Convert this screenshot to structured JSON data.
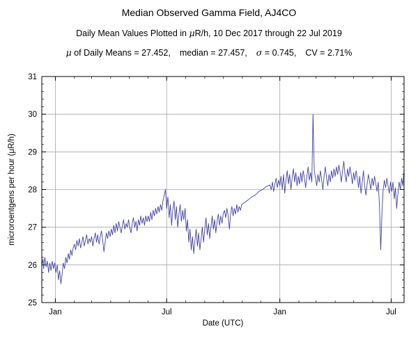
{
  "header": {
    "title": "Median Observed Gamma Field, AJ4CO",
    "subtitle_pre": "Daily Mean Values Plotted in ",
    "subtitle_mu": "μ",
    "subtitle_post": "R/h, 10 Dec 2017 through 22 Jul 2019",
    "stats": {
      "mu": "μ",
      "mu_text": " of Daily Means = 27.452,",
      "median_text": "median = 27.457,",
      "sigma": "σ",
      "sigma_text": " = 0.745,",
      "cv_text": "CV = 2.71%"
    }
  },
  "chart_data": {
    "type": "line",
    "title": "Median Observed Gamma Field, AJ4CO",
    "xlabel": "Date (UTC)",
    "ylabel": "microroentgens per hour (μR/h)",
    "x_start_date": "2017-12-10",
    "x_end_date": "2019-07-22",
    "x_unit": "days since 2017-12-10",
    "xlim_days": [
      0,
      589
    ],
    "ylim": [
      25,
      31
    ],
    "y_major_ticks": [
      25,
      26,
      27,
      28,
      29,
      30,
      31
    ],
    "x_major_ticks": [
      {
        "day": 22,
        "label": "Jan"
      },
      {
        "day": 203,
        "label": "Jul"
      },
      {
        "day": 387,
        "label": "Jan"
      },
      {
        "day": 568,
        "label": "Jul"
      }
    ],
    "x_minor_tick_days": [
      22,
      53,
      81,
      112,
      142,
      173,
      203,
      234,
      265,
      295,
      326,
      356,
      387,
      418,
      446,
      477,
      507,
      538,
      568
    ],
    "grid": true,
    "grid_color": "#a6a6a6",
    "line_color": "#4242a0",
    "stats": {
      "mean": 27.452,
      "median": 27.457,
      "sigma": 0.745,
      "cv_percent": 2.71
    },
    "points": [
      [
        0,
        26.0
      ],
      [
        2,
        26.15
      ],
      [
        3,
        25.9
      ],
      [
        5,
        26.2
      ],
      [
        7,
        25.95
      ],
      [
        9,
        26.1
      ],
      [
        11,
        25.8
      ],
      [
        13,
        26.05
      ],
      [
        15,
        25.85
      ],
      [
        17,
        26.1
      ],
      [
        19,
        25.9
      ],
      [
        21,
        26.05
      ],
      [
        23,
        25.8
      ],
      [
        25,
        26.0
      ],
      [
        27,
        25.6
      ],
      [
        29,
        25.85
      ],
      [
        31,
        25.5
      ],
      [
        33,
        25.75
      ],
      [
        35,
        26.05
      ],
      [
        37,
        25.9
      ],
      [
        39,
        26.2
      ],
      [
        41,
        26.05
      ],
      [
        43,
        26.3
      ],
      [
        45,
        26.15
      ],
      [
        47,
        26.4
      ],
      [
        49,
        26.25
      ],
      [
        51,
        26.45
      ],
      [
        53,
        26.55
      ],
      [
        55,
        26.4
      ],
      [
        57,
        26.65
      ],
      [
        59,
        26.5
      ],
      [
        61,
        26.7
      ],
      [
        63,
        26.45
      ],
      [
        65,
        26.6
      ],
      [
        67,
        26.75
      ],
      [
        69,
        26.5
      ],
      [
        71,
        26.65
      ],
      [
        73,
        26.8
      ],
      [
        75,
        26.55
      ],
      [
        77,
        26.7
      ],
      [
        79,
        26.6
      ],
      [
        81,
        26.75
      ],
      [
        83,
        26.5
      ],
      [
        85,
        26.7
      ],
      [
        87,
        26.85
      ],
      [
        89,
        26.6
      ],
      [
        91,
        26.8
      ],
      [
        93,
        26.55
      ],
      [
        95,
        26.75
      ],
      [
        97,
        26.9
      ],
      [
        99,
        26.65
      ],
      [
        101,
        26.35
      ],
      [
        103,
        26.6
      ],
      [
        105,
        26.85
      ],
      [
        107,
        26.7
      ],
      [
        109,
        26.9
      ],
      [
        111,
        26.75
      ],
      [
        113,
        26.95
      ],
      [
        115,
        26.8
      ],
      [
        117,
        27.05
      ],
      [
        119,
        26.85
      ],
      [
        121,
        27.1
      ],
      [
        123,
        26.9
      ],
      [
        125,
        27.15
      ],
      [
        127,
        27.0
      ],
      [
        129,
        26.85
      ],
      [
        131,
        27.05
      ],
      [
        133,
        27.2
      ],
      [
        135,
        26.95
      ],
      [
        137,
        27.1
      ],
      [
        139,
        27.0
      ],
      [
        141,
        27.2
      ],
      [
        143,
        27.0
      ],
      [
        145,
        26.85
      ],
      [
        147,
        27.1
      ],
      [
        149,
        27.25
      ],
      [
        151,
        27.0
      ],
      [
        153,
        27.15
      ],
      [
        155,
        26.9
      ],
      [
        157,
        27.2
      ],
      [
        159,
        27.05
      ],
      [
        161,
        27.3
      ],
      [
        163,
        27.1
      ],
      [
        165,
        27.25
      ],
      [
        167,
        27.05
      ],
      [
        169,
        27.3
      ],
      [
        171,
        27.15
      ],
      [
        173,
        27.3
      ],
      [
        175,
        27.15
      ],
      [
        177,
        27.4
      ],
      [
        179,
        27.2
      ],
      [
        181,
        27.45
      ],
      [
        183,
        27.3
      ],
      [
        185,
        27.5
      ],
      [
        187,
        27.35
      ],
      [
        189,
        27.55
      ],
      [
        191,
        27.4
      ],
      [
        193,
        27.6
      ],
      [
        195,
        27.45
      ],
      [
        197,
        27.7
      ],
      [
        199,
        27.85
      ],
      [
        201,
        28.0
      ],
      [
        203,
        27.5
      ],
      [
        205,
        27.8
      ],
      [
        207,
        27.25
      ],
      [
        209,
        27.6
      ],
      [
        211,
        27.05
      ],
      [
        213,
        27.45
      ],
      [
        215,
        27.7
      ],
      [
        217,
        27.2
      ],
      [
        219,
        27.55
      ],
      [
        221,
        27.0
      ],
      [
        223,
        27.35
      ],
      [
        225,
        27.6
      ],
      [
        227,
        27.15
      ],
      [
        229,
        27.45
      ],
      [
        231,
        27.2
      ],
      [
        233,
        27.5
      ],
      [
        235,
        26.9
      ],
      [
        237,
        27.2
      ],
      [
        239,
        26.6
      ],
      [
        241,
        26.95
      ],
      [
        243,
        26.4
      ],
      [
        245,
        26.75
      ],
      [
        247,
        26.3
      ],
      [
        249,
        26.65
      ],
      [
        251,
        26.95
      ],
      [
        253,
        26.5
      ],
      [
        255,
        26.85
      ],
      [
        257,
        26.4
      ],
      [
        259,
        26.7
      ],
      [
        261,
        27.0
      ],
      [
        263,
        26.6
      ],
      [
        265,
        26.95
      ],
      [
        267,
        27.25
      ],
      [
        269,
        26.8
      ],
      [
        271,
        27.1
      ],
      [
        273,
        26.7
      ],
      [
        275,
        27.0
      ],
      [
        277,
        27.3
      ],
      [
        279,
        26.95
      ],
      [
        281,
        27.2
      ],
      [
        283,
        26.85
      ],
      [
        285,
        27.15
      ],
      [
        287,
        27.35
      ],
      [
        289,
        27.05
      ],
      [
        291,
        27.3
      ],
      [
        293,
        27.1
      ],
      [
        295,
        27.35
      ],
      [
        297,
        27.45
      ],
      [
        299,
        27.25
      ],
      [
        301,
        27.5
      ],
      [
        303,
        27.3
      ],
      [
        305,
        26.95
      ],
      [
        307,
        27.35
      ],
      [
        309,
        27.55
      ],
      [
        311,
        27.3
      ],
      [
        313,
        27.5
      ],
      [
        315,
        27.35
      ],
      [
        317,
        27.6
      ],
      [
        319,
        27.4
      ],
      [
        321,
        27.55
      ],
      [
        323,
        27.45
      ],
      [
        325,
        27.6
      ],
      [
        329,
        27.65
      ],
      [
        335,
        27.72
      ],
      [
        341,
        27.8
      ],
      [
        347,
        27.85
      ],
      [
        353,
        27.95
      ],
      [
        359,
        28.0
      ],
      [
        365,
        28.08
      ],
      [
        371,
        28.12
      ],
      [
        373,
        28.0
      ],
      [
        375,
        28.2
      ],
      [
        377,
        27.95
      ],
      [
        379,
        28.15
      ],
      [
        381,
        28.3
      ],
      [
        383,
        28.05
      ],
      [
        385,
        28.25
      ],
      [
        387,
        28.1
      ],
      [
        389,
        28.35
      ],
      [
        391,
        28.0
      ],
      [
        393,
        28.4
      ],
      [
        395,
        27.9
      ],
      [
        397,
        28.25
      ],
      [
        399,
        28.5
      ],
      [
        401,
        28.15
      ],
      [
        403,
        28.4
      ],
      [
        405,
        28.0
      ],
      [
        407,
        28.3
      ],
      [
        409,
        28.55
      ],
      [
        411,
        28.2
      ],
      [
        413,
        28.45
      ],
      [
        415,
        28.1
      ],
      [
        417,
        28.35
      ],
      [
        419,
        28.15
      ],
      [
        421,
        28.45
      ],
      [
        423,
        28.2
      ],
      [
        425,
        28.5
      ],
      [
        427,
        28.3
      ],
      [
        429,
        28.05
      ],
      [
        431,
        28.35
      ],
      [
        433,
        28.6
      ],
      [
        435,
        28.25
      ],
      [
        437,
        28.45
      ],
      [
        439,
        28.2
      ],
      [
        441,
        30.0
      ],
      [
        443,
        28.5
      ],
      [
        445,
        28.3
      ],
      [
        447,
        28.1
      ],
      [
        449,
        28.4
      ],
      [
        451,
        28.2
      ],
      [
        453,
        28.5
      ],
      [
        455,
        28.25
      ],
      [
        457,
        28.0
      ],
      [
        459,
        28.35
      ],
      [
        461,
        28.6
      ],
      [
        463,
        28.3
      ],
      [
        465,
        28.1
      ],
      [
        467,
        28.4
      ],
      [
        469,
        28.2
      ],
      [
        471,
        28.5
      ],
      [
        473,
        28.3
      ],
      [
        475,
        28.55
      ],
      [
        477,
        28.35
      ],
      [
        479,
        28.6
      ],
      [
        481,
        28.4
      ],
      [
        483,
        28.65
      ],
      [
        485,
        28.45
      ],
      [
        487,
        28.2
      ],
      [
        489,
        28.5
      ],
      [
        491,
        28.75
      ],
      [
        493,
        28.4
      ],
      [
        495,
        28.2
      ],
      [
        497,
        28.55
      ],
      [
        499,
        28.35
      ],
      [
        501,
        28.6
      ],
      [
        503,
        28.4
      ],
      [
        505,
        28.15
      ],
      [
        507,
        28.45
      ],
      [
        509,
        28.25
      ],
      [
        511,
        28.5
      ],
      [
        513,
        28.3
      ],
      [
        515,
        28.05
      ],
      [
        517,
        28.35
      ],
      [
        519,
        27.9
      ],
      [
        521,
        28.2
      ],
      [
        523,
        28.5
      ],
      [
        525,
        28.1
      ],
      [
        527,
        27.85
      ],
      [
        529,
        28.15
      ],
      [
        531,
        28.4
      ],
      [
        533,
        28.2
      ],
      [
        535,
        28.0
      ],
      [
        537,
        28.3
      ],
      [
        539,
        28.1
      ],
      [
        541,
        28.35
      ],
      [
        543,
        28.15
      ],
      [
        545,
        27.95
      ],
      [
        547,
        28.2
      ],
      [
        549,
        27.55
      ],
      [
        551,
        26.4
      ],
      [
        553,
        27.35
      ],
      [
        555,
        28.0
      ],
      [
        557,
        28.25
      ],
      [
        559,
        28.05
      ],
      [
        561,
        28.3
      ],
      [
        563,
        28.1
      ],
      [
        565,
        27.9
      ],
      [
        567,
        28.2
      ],
      [
        569,
        27.95
      ],
      [
        571,
        28.2
      ],
      [
        573,
        27.75
      ],
      [
        575,
        28.05
      ],
      [
        577,
        27.5
      ],
      [
        579,
        27.9
      ],
      [
        581,
        28.2
      ],
      [
        583,
        28.0
      ],
      [
        585,
        28.3
      ],
      [
        587,
        28.1
      ],
      [
        589,
        28.55
      ]
    ]
  }
}
